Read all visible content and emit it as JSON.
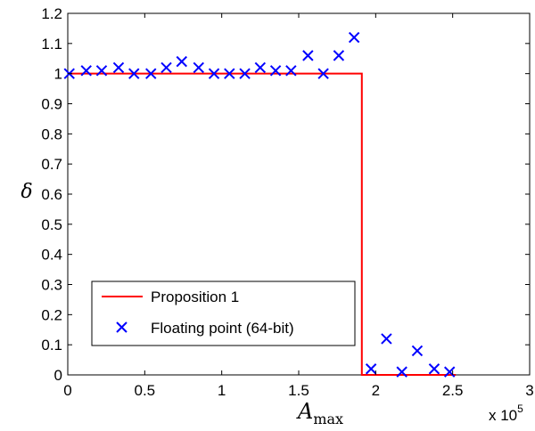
{
  "chart_data": {
    "type": "line",
    "xlabel": "A",
    "xlabel_sub": "max",
    "ylabel": "δ",
    "x_multiplier": "x 10",
    "x_multiplier_exp": "5",
    "xlim": [
      0,
      300000
    ],
    "ylim": [
      0,
      1.2
    ],
    "x_ticks": [
      0,
      50000,
      100000,
      150000,
      200000,
      250000,
      300000
    ],
    "x_tick_labels": [
      "0",
      "0.5",
      "1",
      "1.5",
      "2",
      "2.5",
      "3"
    ],
    "y_ticks": [
      0,
      0.1,
      0.2,
      0.3,
      0.4,
      0.5,
      0.6,
      0.7,
      0.8,
      0.9,
      1,
      1.1,
      1.2
    ],
    "y_tick_labels": [
      "0",
      "0.1",
      "0.2",
      "0.3",
      "0.4",
      "0.5",
      "0.6",
      "0.7",
      "0.8",
      "0.9",
      "1",
      "1.1",
      "1.2"
    ],
    "legend_position": "bottom-left",
    "grid": false,
    "series": [
      {
        "name": "Proposition 1",
        "style": "line",
        "color": "#ff0000",
        "x": [
          0,
          191000,
          191000,
          252000
        ],
        "y": [
          1,
          1,
          0,
          0
        ]
      },
      {
        "name": "Floating point (64-bit)",
        "style": "marker-x",
        "color": "#0000ff",
        "x": [
          1000,
          12000,
          22000,
          33000,
          43000,
          54000,
          64000,
          74000,
          85000,
          95000,
          105000,
          115000,
          125000,
          135000,
          145000,
          156000,
          166000,
          176000,
          186000,
          197000,
          207000,
          217000,
          227000,
          238000,
          248000
        ],
        "y": [
          1.0,
          1.01,
          1.01,
          1.02,
          1.0,
          1.0,
          1.02,
          1.04,
          1.02,
          1.0,
          1.0,
          1.0,
          1.02,
          1.01,
          1.01,
          1.06,
          1.0,
          1.06,
          1.12,
          0.02,
          0.12,
          0.01,
          0.08,
          0.02,
          0.01
        ]
      }
    ]
  }
}
